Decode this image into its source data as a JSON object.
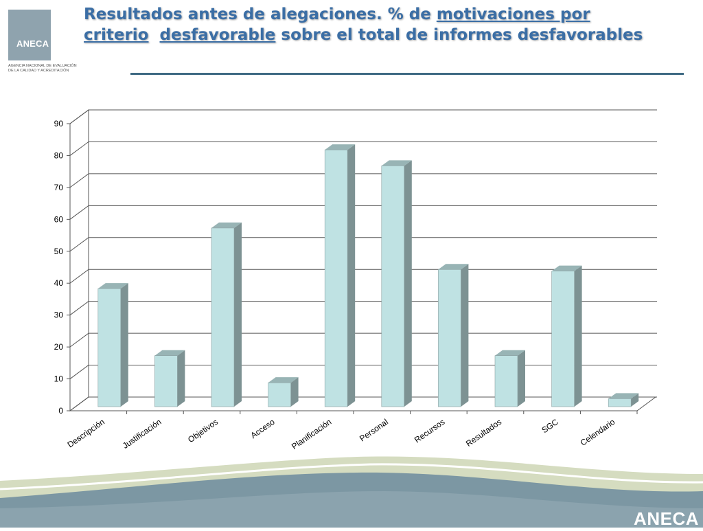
{
  "header": {
    "title_parts": [
      "Resultados antes de alegaciones. % de ",
      "motivaciones por criterio",
      "desfavorable",
      " sobre el total de informes desfavorables"
    ],
    "logo_text": "ANECA",
    "logo_subtitle": "Agencia Nacional de Evaluación de la Calidad y Acreditación"
  },
  "footer": {
    "brand": "ANECA"
  },
  "colors": {
    "bar_front": "#bfe2e3",
    "bar_side": "#7d9293",
    "bar_top": "#98b4b5",
    "title": "#3b6ea5",
    "wave_dark": "#7c97a3",
    "wave_light": "#d5dcc0"
  },
  "chart_data": {
    "type": "bar",
    "categories": [
      "Descripción",
      "Justificación",
      "Objetivos",
      "Acceso",
      "Planificación",
      "Personal",
      "Recursos",
      "Resultados",
      "SGC",
      "Celendario"
    ],
    "values": [
      37,
      16,
      56,
      7.5,
      80.5,
      75.5,
      43,
      16,
      42.5,
      2.5
    ],
    "yticks": [
      "0",
      "10",
      "20",
      "30",
      "40",
      "50",
      "60",
      "70",
      "80",
      "90"
    ],
    "ylim": [
      0,
      90
    ],
    "grid": true,
    "legend": "none",
    "title": "",
    "xlabel": "",
    "ylabel": ""
  }
}
